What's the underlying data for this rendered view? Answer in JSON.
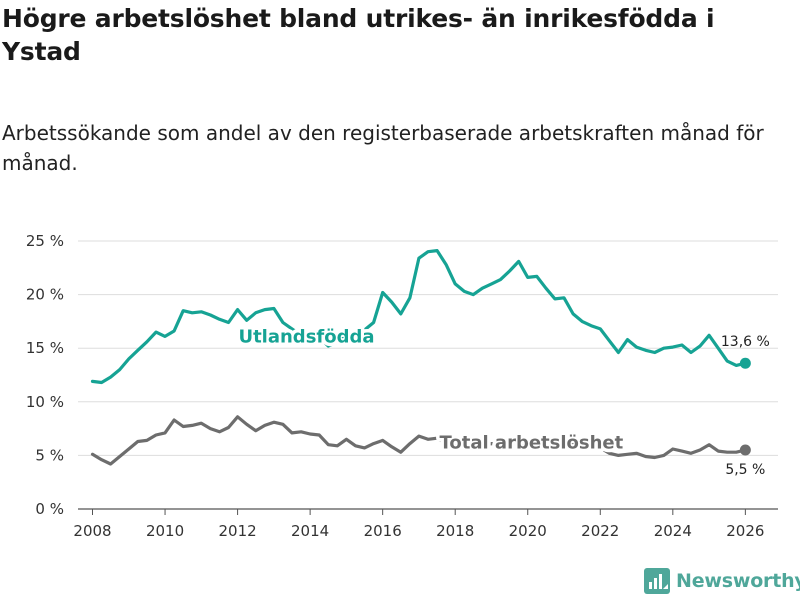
{
  "title": "Högre arbetslöshet bland utrikes- än inrikesfödda i Ystad",
  "subtitle": "Arbetssökande som andel av den registerbaserade arbetskraften månad för månad.",
  "brand": {
    "name": "Newsworthy",
    "icon": "newsworthy-logo-icon",
    "color": "#4fa79a"
  },
  "chart_data": {
    "type": "line",
    "title": "Högre arbetslöshet bland utrikes- än inrikesfödda i Ystad",
    "xlabel": "",
    "ylabel": "",
    "xlim": [
      2007.6,
      2026.9
    ],
    "ylim": [
      0,
      25
    ],
    "x_ticks": [
      2008,
      2010,
      2012,
      2014,
      2016,
      2018,
      2020,
      2022,
      2024,
      2026
    ],
    "x_tick_labels": [
      "2008",
      "2010",
      "2012",
      "2014",
      "2016",
      "2018",
      "2020",
      "2022",
      "2024",
      "2026"
    ],
    "y_ticks": [
      0,
      5,
      10,
      15,
      20,
      25
    ],
    "y_tick_labels": [
      "0 %",
      "5 %",
      "10 %",
      "15 %",
      "20 %",
      "25 %"
    ],
    "grid": true,
    "series": [
      {
        "name": "Utlandsfödda",
        "label": "Utlandsfödda",
        "color": "#16a394",
        "end_label": "13,6 %",
        "x": [
          2008.0,
          2008.25,
          2008.5,
          2008.75,
          2009.0,
          2009.25,
          2009.5,
          2009.75,
          2010.0,
          2010.25,
          2010.5,
          2010.75,
          2011.0,
          2011.25,
          2011.5,
          2011.75,
          2012.0,
          2012.25,
          2012.5,
          2012.75,
          2013.0,
          2013.25,
          2013.5,
          2013.75,
          2014.0,
          2014.25,
          2014.5,
          2014.75,
          2015.0,
          2015.25,
          2015.5,
          2015.75,
          2016.0,
          2016.25,
          2016.5,
          2016.75,
          2017.0,
          2017.25,
          2017.5,
          2017.75,
          2018.0,
          2018.25,
          2018.5,
          2018.75,
          2019.0,
          2019.25,
          2019.5,
          2019.75,
          2020.0,
          2020.25,
          2020.5,
          2020.75,
          2021.0,
          2021.25,
          2021.5,
          2021.75,
          2022.0,
          2022.25,
          2022.5,
          2022.75,
          2023.0,
          2023.25,
          2023.5,
          2023.75,
          2024.0,
          2024.25,
          2024.5,
          2024.75,
          2025.0,
          2025.25,
          2025.5,
          2025.75,
          2026.0
        ],
        "values": [
          11.9,
          11.8,
          12.3,
          13.0,
          14.0,
          14.8,
          15.6,
          16.5,
          16.1,
          16.6,
          18.5,
          18.3,
          18.4,
          18.1,
          17.7,
          17.4,
          18.6,
          17.6,
          18.3,
          18.6,
          18.7,
          17.4,
          16.8,
          16.2,
          16.1,
          16.0,
          15.2,
          15.6,
          16.2,
          16.4,
          16.7,
          17.4,
          20.2,
          19.3,
          18.2,
          19.7,
          23.4,
          24.0,
          24.1,
          22.8,
          21.0,
          20.3,
          20.0,
          20.6,
          21.0,
          21.4,
          22.2,
          23.1,
          21.6,
          21.7,
          20.6,
          19.6,
          19.7,
          18.2,
          17.5,
          17.1,
          16.8,
          15.7,
          14.6,
          15.8,
          15.1,
          14.8,
          14.6,
          15.0,
          15.1,
          15.3,
          14.6,
          15.2,
          16.2,
          15.0,
          13.8,
          13.4,
          13.6
        ]
      },
      {
        "name": "Total arbetslöshet",
        "label": "Total arbetslöshet",
        "color": "#6d6d6d",
        "end_label": "5,5 %",
        "x": [
          2008.0,
          2008.25,
          2008.5,
          2008.75,
          2009.0,
          2009.25,
          2009.5,
          2009.75,
          2010.0,
          2010.25,
          2010.5,
          2010.75,
          2011.0,
          2011.25,
          2011.5,
          2011.75,
          2012.0,
          2012.25,
          2012.5,
          2012.75,
          2013.0,
          2013.25,
          2013.5,
          2013.75,
          2014.0,
          2014.25,
          2014.5,
          2014.75,
          2015.0,
          2015.25,
          2015.5,
          2015.75,
          2016.0,
          2016.25,
          2016.5,
          2016.75,
          2017.0,
          2017.25,
          2017.5,
          2017.75,
          2018.0,
          2018.25,
          2018.5,
          2018.75,
          2019.0,
          2019.25,
          2019.5,
          2019.75,
          2020.0,
          2020.25,
          2020.5,
          2020.75,
          2021.0,
          2021.25,
          2021.5,
          2021.75,
          2022.0,
          2022.25,
          2022.5,
          2022.75,
          2023.0,
          2023.25,
          2023.5,
          2023.75,
          2024.0,
          2024.25,
          2024.5,
          2024.75,
          2025.0,
          2025.25,
          2025.5,
          2025.75,
          2026.0
        ],
        "values": [
          5.1,
          4.6,
          4.2,
          4.9,
          5.6,
          6.3,
          6.4,
          6.9,
          7.1,
          8.3,
          7.7,
          7.8,
          8.0,
          7.5,
          7.2,
          7.6,
          8.6,
          7.9,
          7.3,
          7.8,
          8.1,
          7.9,
          7.1,
          7.2,
          7.0,
          6.9,
          6.0,
          5.9,
          6.5,
          5.9,
          5.7,
          6.1,
          6.4,
          5.8,
          5.3,
          6.1,
          6.8,
          6.5,
          6.6,
          6.1,
          5.9,
          5.8,
          5.8,
          5.9,
          6.1,
          6.0,
          5.9,
          5.9,
          5.9,
          6.0,
          5.9,
          5.7,
          5.9,
          6.0,
          5.9,
          5.8,
          5.7,
          5.2,
          5.0,
          5.1,
          5.2,
          4.9,
          4.8,
          5.0,
          5.6,
          5.4,
          5.2,
          5.5,
          6.0,
          5.4,
          5.3,
          5.3,
          5.5
        ]
      }
    ]
  }
}
